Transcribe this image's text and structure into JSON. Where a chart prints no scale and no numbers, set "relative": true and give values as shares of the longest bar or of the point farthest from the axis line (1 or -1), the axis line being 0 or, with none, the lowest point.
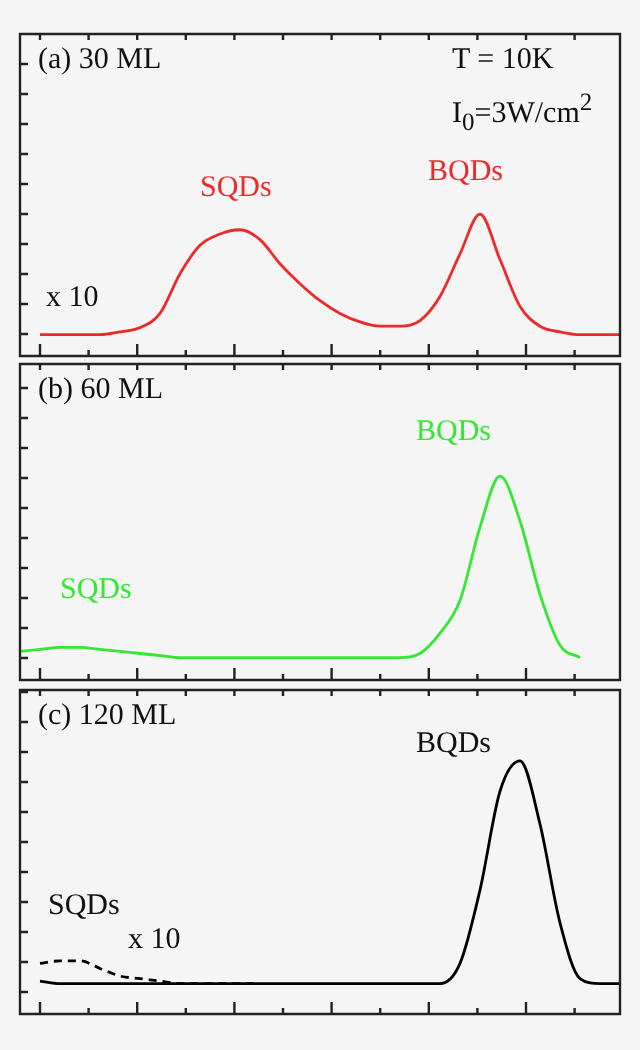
{
  "chart_data": [
    {
      "type": "line",
      "title": "(a) 30 ML",
      "relative": true,
      "tick_labels": false,
      "categories": [
        null,
        null,
        null,
        null,
        null,
        null,
        null,
        null,
        null,
        null,
        null,
        null,
        null,
        null,
        null,
        null,
        null,
        null,
        null,
        null,
        null,
        null,
        null,
        null,
        null,
        null,
        null,
        null,
        null,
        null,
        null
      ],
      "annotations": [
        "T = 10K",
        "I$_{0}$=3W/cm$^{2}$",
        "SQDs",
        "BQDs",
        "x 10"
      ],
      "series": [
        {
          "color": "#ec2a2a",
          "values": [
            null,
            0.15,
            0.15,
            0.15,
            0.15,
            0.17,
            0.2,
            0.3,
            0.58,
            0.78,
            0.86,
            0.89,
            0.82,
            0.65,
            0.51,
            0.39,
            0.3,
            0.24,
            0.21,
            0.21,
            0.25,
            0.42,
            0.72,
            1.0,
            0.68,
            0.35,
            0.21,
            0.17,
            0.15,
            0.15,
            0.15
          ]
        }
      ]
    },
    {
      "type": "line",
      "title": "(b) 60 ML",
      "relative": true,
      "tick_labels": false,
      "categories": [
        null,
        null,
        null,
        null,
        null,
        null,
        null,
        null,
        null,
        null,
        null,
        null,
        null,
        null,
        null,
        null,
        null,
        null,
        null,
        null,
        null,
        null,
        null,
        null,
        null,
        null,
        null,
        null,
        null,
        null,
        null
      ],
      "annotations": [
        "BQDs",
        "SQDs"
      ],
      "series": [
        {
          "color": "#33e833",
          "values": [
            0.14,
            0.15,
            0.16,
            0.16,
            0.15,
            0.14,
            0.13,
            0.12,
            0.11,
            0.11,
            0.11,
            0.11,
            0.11,
            0.11,
            0.11,
            0.11,
            0.11,
            0.11,
            0.11,
            0.11,
            0.13,
            0.23,
            0.39,
            0.75,
            1.0,
            0.78,
            0.42,
            0.17,
            0.11,
            null,
            null
          ]
        }
      ]
    },
    {
      "type": "line",
      "title": "(c) 120 ML",
      "relative": true,
      "tick_labels": false,
      "categories": [
        null,
        null,
        null,
        null,
        null,
        null,
        null,
        null,
        null,
        null,
        null,
        null,
        null,
        null,
        null,
        null,
        null,
        null,
        null,
        null,
        null,
        null,
        null,
        null,
        null,
        null,
        null,
        null,
        null,
        null,
        null
      ],
      "annotations": [
        "BQDs",
        "SQDs",
        "x 10"
      ],
      "series": [
        {
          "color": "#000000",
          "values": [
            null,
            0.13,
            0.12,
            0.12,
            0.12,
            0.12,
            0.12,
            0.12,
            0.12,
            0.12,
            0.12,
            0.12,
            0.12,
            0.12,
            0.12,
            0.12,
            0.12,
            0.12,
            0.12,
            0.12,
            0.12,
            0.12,
            0.2,
            0.49,
            0.88,
            1.0,
            0.75,
            0.36,
            0.14,
            0.12,
            0.12
          ]
        },
        {
          "color": "#000000",
          "line_style": "dashed",
          "values": [
            null,
            0.2,
            0.21,
            0.21,
            0.18,
            0.15,
            0.14,
            0.13,
            0.12,
            0.12,
            0.12,
            0.12,
            0.12,
            null,
            null,
            null,
            null,
            null,
            null,
            null,
            null,
            null,
            null,
            null,
            null,
            null,
            null,
            null,
            null,
            null,
            null
          ]
        }
      ]
    }
  ]
}
